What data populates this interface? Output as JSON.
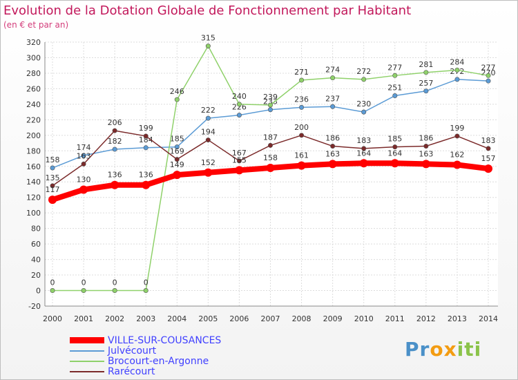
{
  "header": {
    "title": "Evolution de la Dotation Globale de Fonctionnement par Habitant",
    "subtitle": "(en € et par an)"
  },
  "logo": {
    "part1": "Pr",
    "part2": "ox",
    "part3": "iti"
  },
  "chart_data": {
    "type": "line",
    "title": "Evolution de la Dotation Globale de Fonctionnement par Habitant",
    "subtitle": "(en € et par an)",
    "xlabel": "",
    "ylabel": "",
    "ylim": [
      -20,
      320
    ],
    "ytick_step": 20,
    "grid": true,
    "legend_position": "bottom",
    "x": [
      "2000",
      "2001",
      "2002",
      "2003",
      "2004",
      "2005",
      "2006",
      "2007",
      "2008",
      "2009",
      "2010",
      "2011",
      "2012",
      "2013",
      "2014"
    ],
    "series": [
      {
        "name": "VILLE-SUR-COUSANCES",
        "color": "#ff0000",
        "emphasis": true,
        "values": [
          117,
          130,
          136,
          136,
          149,
          152,
          155,
          158,
          161,
          163,
          164,
          164,
          163,
          162,
          157
        ]
      },
      {
        "name": "Julvécourt",
        "color": "#5b9bd5",
        "values": [
          158,
          174,
          182,
          184,
          185,
          222,
          226,
          233,
          236,
          237,
          230,
          251,
          257,
          272,
          270
        ]
      },
      {
        "name": "Brocourt-en-Argonne",
        "color": "#8fd16a",
        "values": [
          0,
          0,
          0,
          0,
          246,
          315,
          240,
          239,
          271,
          274,
          272,
          277,
          281,
          284,
          277
        ]
      },
      {
        "name": "Rarécourt",
        "color": "#7b2a2a",
        "values": [
          135,
          163,
          206,
          199,
          169,
          194,
          167,
          187,
          200,
          186,
          183,
          185,
          186,
          199,
          183
        ]
      }
    ]
  }
}
